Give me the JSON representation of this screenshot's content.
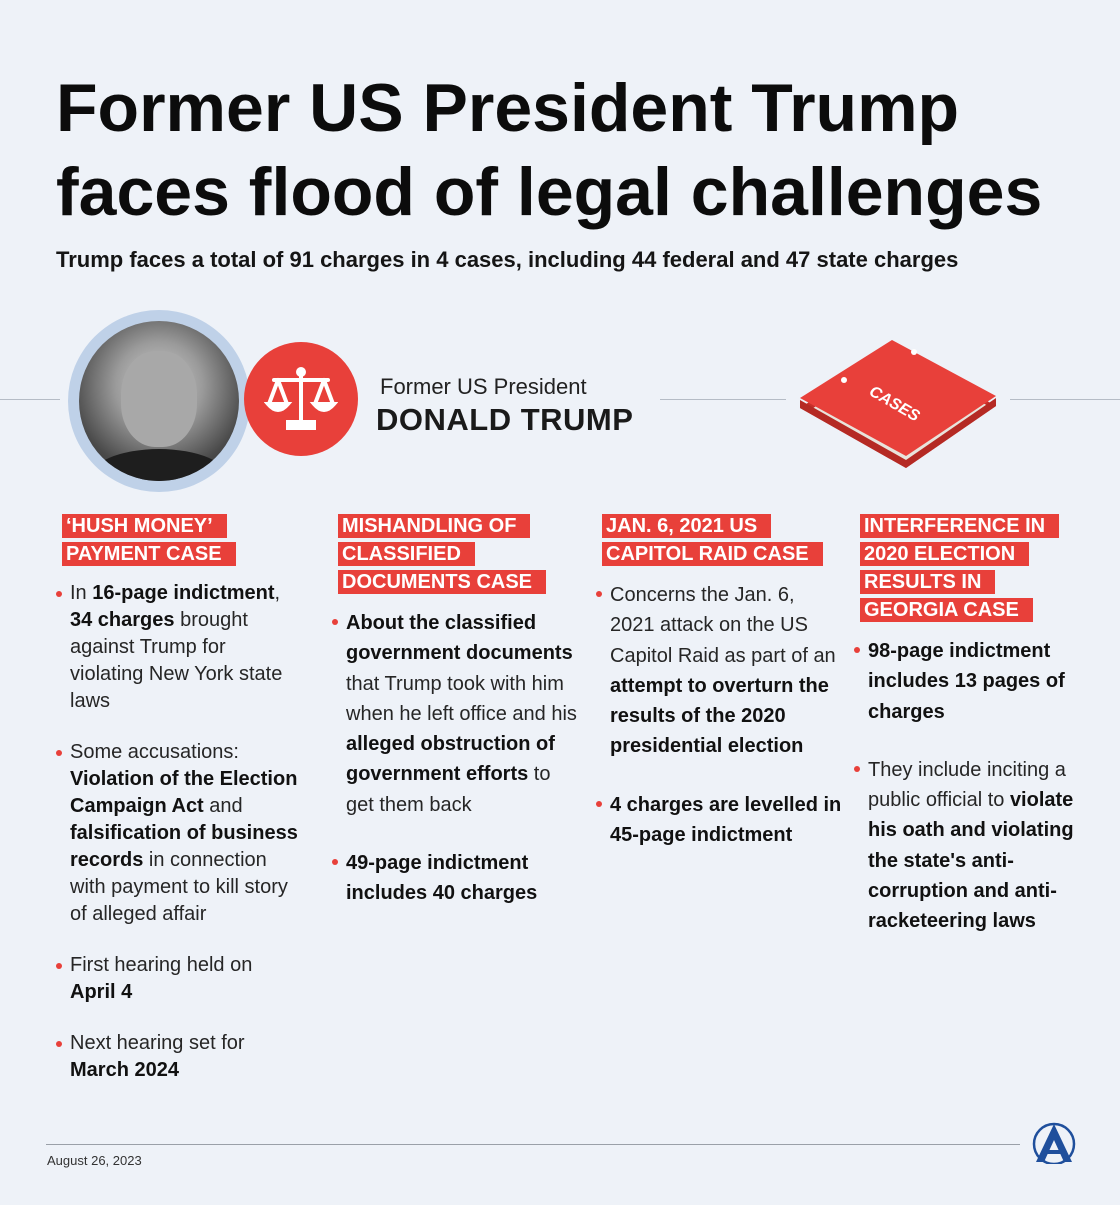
{
  "title": [
    "Former US President Trump",
    "faces flood of legal challenges"
  ],
  "subtitle": "Trump faces a total of 91 charges in 4 cases, including 44 federal and 47 state charges",
  "person": {
    "role": "Former US President",
    "name": "DONALD TRUMP"
  },
  "binder_label": "CASES",
  "colors": {
    "accent": "#e8403a",
    "background": "#eef2f8",
    "portrait_ring": "#bfd1e8"
  },
  "icons": [
    "scales-of-justice-icon",
    "case-binder-icon",
    "anadolu-agency-logo"
  ],
  "cases": [
    {
      "heading": [
        "‘HUSH MONEY’",
        "PAYMENT CASE"
      ],
      "bullets": [
        [
          {
            "t": "In "
          },
          {
            "t": "16-page indictment",
            "b": true
          },
          {
            "t": ", "
          },
          {
            "t": "34 charges",
            "b": true
          },
          {
            "t": " brought against Trump for violating New York state laws"
          }
        ],
        [
          {
            "t": "Some accusations: "
          },
          {
            "t": "Violation of the Election Campaign Act",
            "b": true
          },
          {
            "t": " and "
          },
          {
            "t": "falsification of business records",
            "b": true
          },
          {
            "t": " in connection with payment to kill story of alleged affair"
          }
        ],
        [
          {
            "t": "First hearing held on "
          },
          {
            "t": "April 4",
            "b": true
          }
        ],
        [
          {
            "t": "Next hearing set for "
          },
          {
            "t": "March 2024",
            "b": true
          }
        ]
      ]
    },
    {
      "heading": [
        "MISHANDLING OF",
        "CLASSIFIED",
        "DOCUMENTS CASE"
      ],
      "bullets": [
        [
          {
            "t": "About the classified government documents",
            "b": true
          },
          {
            "t": " that Trump took with him when he left office and his "
          },
          {
            "t": "alleged obstruction of government efforts",
            "b": true
          },
          {
            "t": " to get them back"
          }
        ],
        [
          {
            "t": "49-page indictment includes 40 charges",
            "b": true
          }
        ]
      ]
    },
    {
      "heading": [
        "JAN. 6, 2021 US",
        "CAPITOL RAID CASE"
      ],
      "bullets": [
        [
          {
            "t": "Concerns the Jan. 6, 2021 attack on the US Capitol Raid as part of an "
          },
          {
            "t": "attempt to overturn the results of the 2020 presidential election",
            "b": true
          }
        ],
        [
          {
            "t": "4 charges are levelled in 45-page indictment",
            "b": true
          }
        ]
      ]
    },
    {
      "heading": [
        "INTERFERENCE IN",
        "2020 ELECTION",
        "RESULTS IN",
        "GEORGIA CASE"
      ],
      "bullets": [
        [
          {
            "t": "98-page indictment includes 13 pages of charges",
            "b": true
          }
        ],
        [
          {
            "t": "They include inciting a public official to "
          },
          {
            "t": "violate his oath and violating the state's anti-corruption and anti-racketeering laws",
            "b": true
          }
        ]
      ]
    }
  ],
  "footer": {
    "date": "August 26, 2023"
  }
}
